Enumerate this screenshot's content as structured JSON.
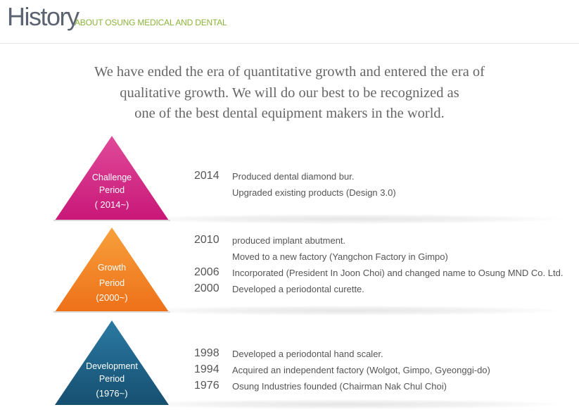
{
  "header": {
    "title": "History",
    "subtitle": "ABOUT OSUNG MEDICAL AND DENTAL"
  },
  "intro": {
    "lines": [
      "We have ended the era of quantitative growth and entered the era of",
      "qualitative growth. We will do our best to be recognized as",
      "one of the best dental equipment makers in the world."
    ]
  },
  "periods": [
    {
      "name_line1": "Challenge",
      "name_line2": "Period",
      "years": "( 2014~)",
      "color": "#d4217f",
      "events": [
        {
          "year": "2014",
          "text": "Produced dental diamond bur."
        },
        {
          "year": "",
          "text": "Upgraded existing products (Design 3.0)"
        }
      ]
    },
    {
      "name_line1": "Growth",
      "name_line2": "Period",
      "years": "(2000~)",
      "color": "#f3801f",
      "events": [
        {
          "year": "2010",
          "text": "produced implant abutment."
        },
        {
          "year": "",
          "text": "Moved to a new factory (Yangchon Factory in Gimpo)"
        },
        {
          "year": "2006",
          "text": "Incorporated (President In Joon Choi)   and changed name to Osung MND Co. Ltd."
        },
        {
          "year": "2000",
          "text": " Developed a periodontal curette."
        }
      ]
    },
    {
      "name_line1": "Development",
      "name_line2": "Period",
      "years": "(1976~)",
      "color": "#1b5f84",
      "events": [
        {
          "year": "1998",
          "text": "Developed a periodontal hand scaler."
        },
        {
          "year": "1994",
          "text": "Acquired an independent factory (Wolgot, Gimpo, Gyeonggi-do)"
        },
        {
          "year": "1976",
          "text": "Osung Industries founded (Chairman Nak Chul Choi)"
        }
      ]
    }
  ]
}
